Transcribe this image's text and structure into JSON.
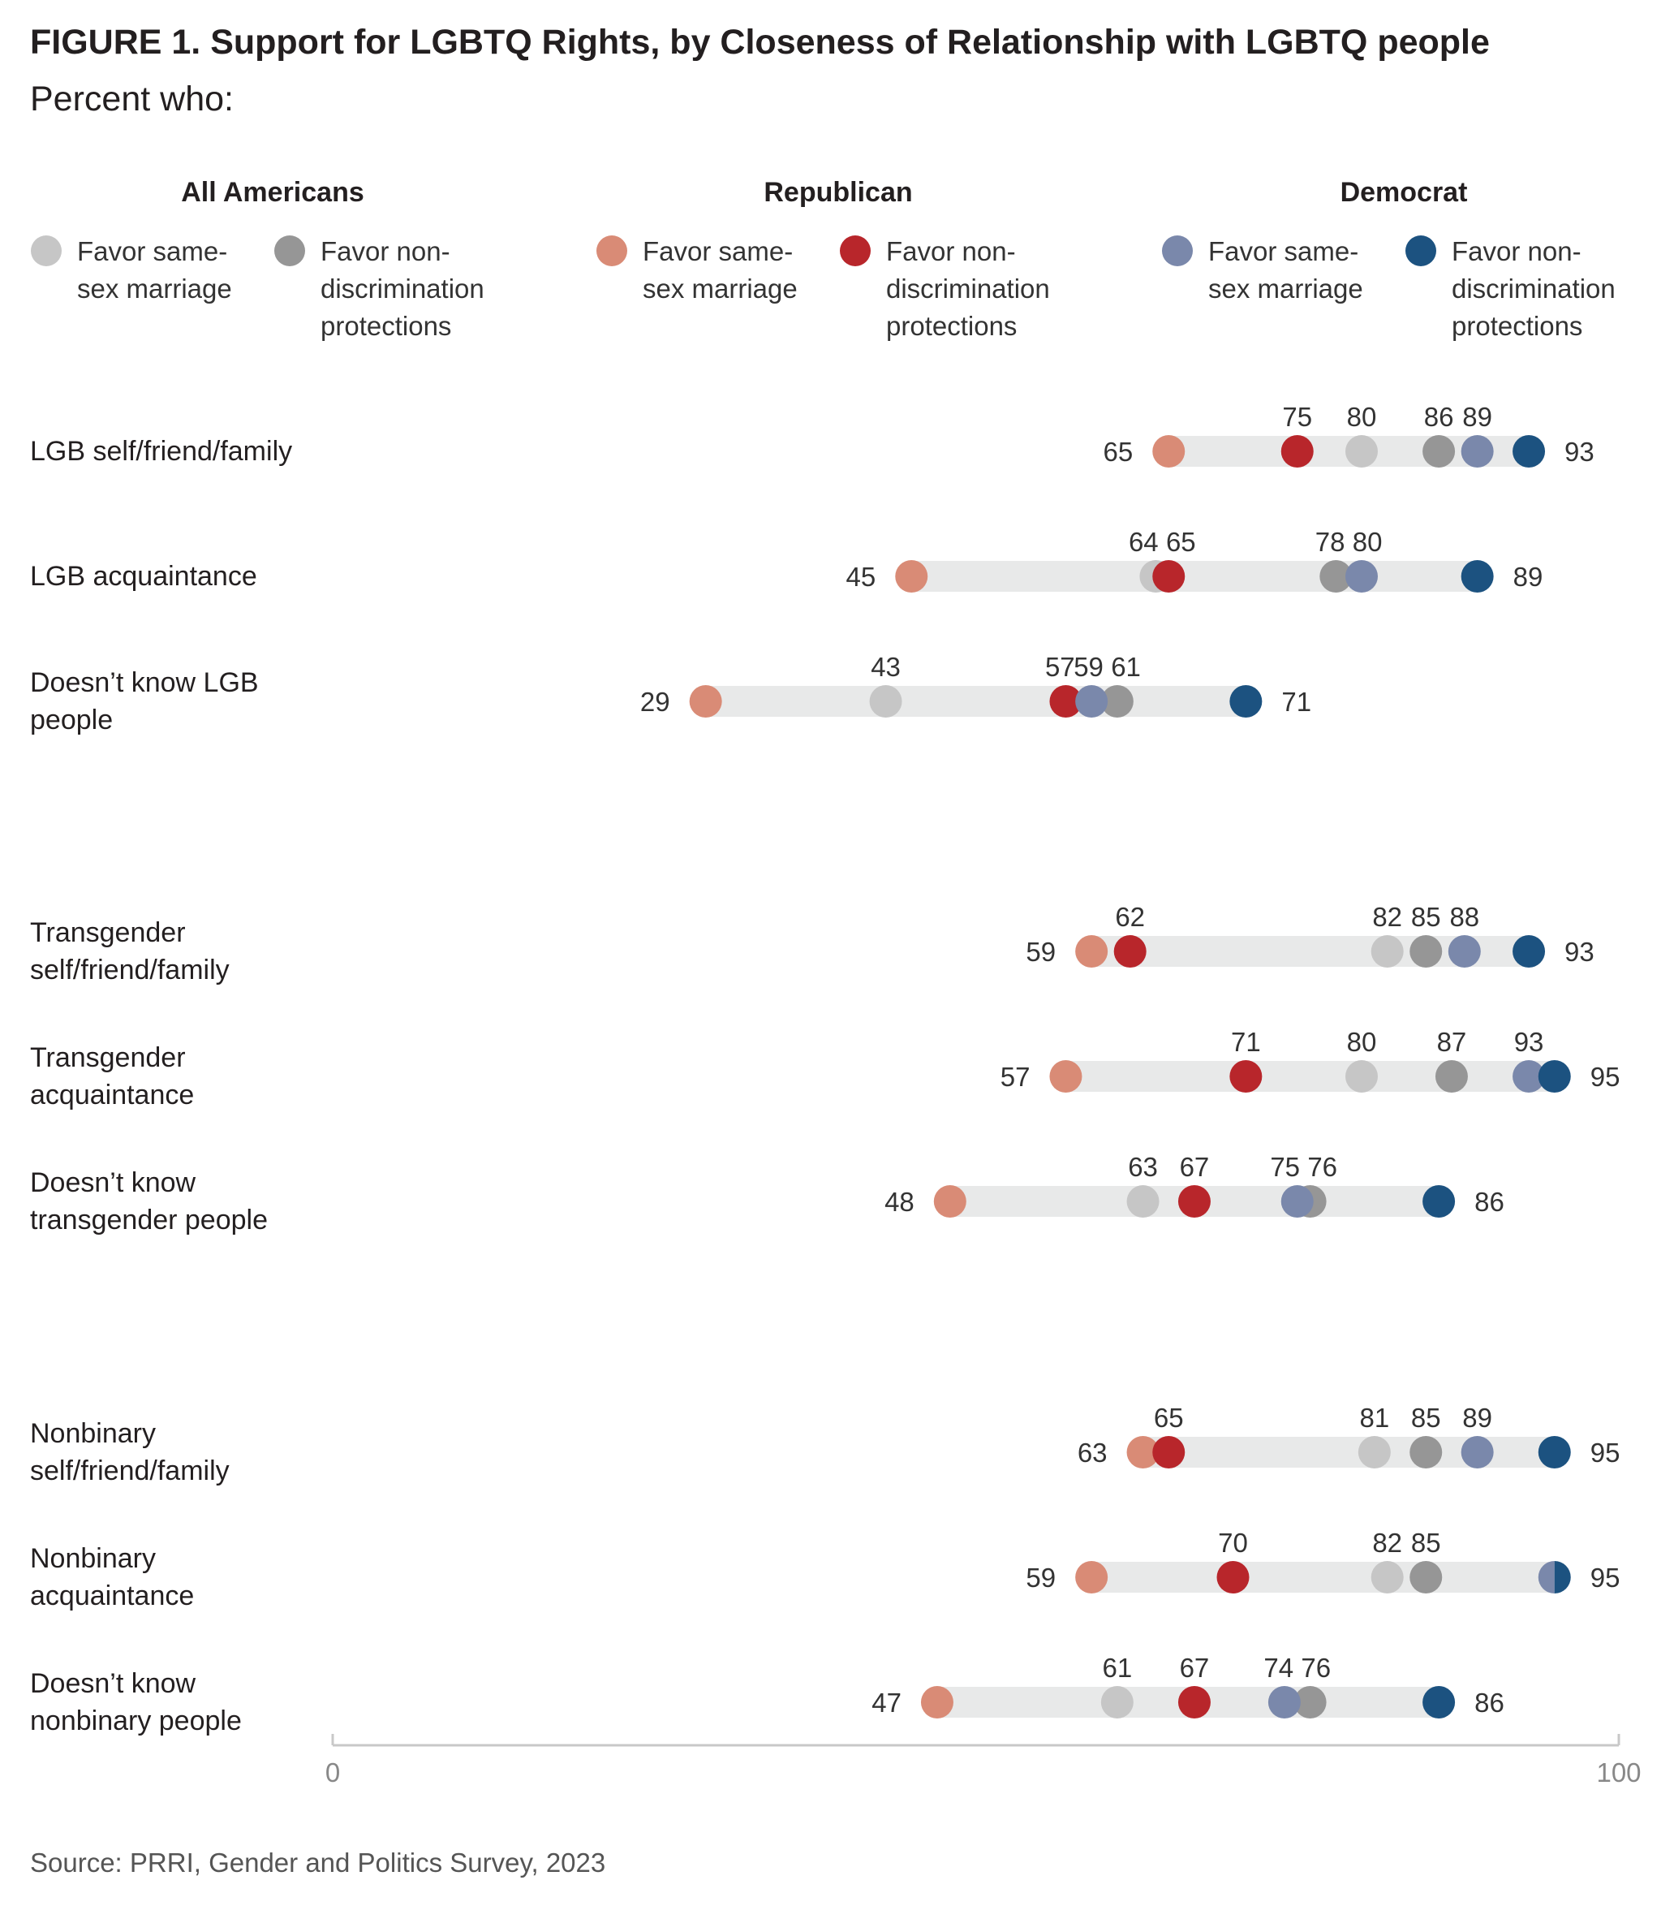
{
  "header": {
    "title": "FIGURE 1.  Support for LGBTQ Rights, by Closeness of Relationship with LGBTQ people",
    "subtitle": "Percent who:"
  },
  "legend": {
    "groups": [
      {
        "title": "All Americans",
        "items": [
          {
            "label": "Favor same-sex marriage",
            "color": "#c6c6c6"
          },
          {
            "label": "Favor non-discrimination protections",
            "color": "#969696"
          }
        ]
      },
      {
        "title": "Republican",
        "items": [
          {
            "label": "Favor same-sex marriage",
            "color": "#d98b76"
          },
          {
            "label": "Favor non-discrimination protections",
            "color": "#b8262b"
          }
        ]
      },
      {
        "title": "Democrat",
        "items": [
          {
            "label": "Favor same-sex marriage",
            "color": "#7a88ab"
          },
          {
            "label": "Favor non-discrimination protections",
            "color": "#1c5280"
          }
        ]
      }
    ]
  },
  "chart_data": {
    "type": "dot",
    "xlim": [
      0,
      100
    ],
    "x_ticks": [
      "0",
      "100"
    ],
    "grid": false,
    "series_order": [
      "all_ssm",
      "all_nd",
      "rep_ssm",
      "rep_nd",
      "dem_ssm",
      "dem_nd"
    ],
    "colors": {
      "all_ssm": "#c6c6c6",
      "all_nd": "#969696",
      "rep_ssm": "#d98b76",
      "rep_nd": "#b8262b",
      "dem_ssm": "#7a88ab",
      "dem_nd": "#1c5280"
    },
    "rows": [
      {
        "label": "LGB self/friend/family",
        "all_ssm": 80,
        "all_nd": 86,
        "rep_ssm": 65,
        "rep_nd": 75,
        "dem_ssm": 89,
        "dem_nd": 93
      },
      {
        "label": "LGB acquaintance",
        "all_ssm": 64,
        "all_nd": 78,
        "rep_ssm": 45,
        "rep_nd": 65,
        "dem_ssm": 80,
        "dem_nd": 89
      },
      {
        "label": "Doesn’t know LGB people",
        "all_ssm": 43,
        "all_nd": 61,
        "rep_ssm": 29,
        "rep_nd": 57,
        "dem_ssm": 59,
        "dem_nd": 71
      },
      {
        "label": "Transgender self/friend/family",
        "all_ssm": 82,
        "all_nd": 85,
        "rep_ssm": 59,
        "rep_nd": 62,
        "dem_ssm": 88,
        "dem_nd": 93
      },
      {
        "label": "Transgender acquaintance",
        "all_ssm": 80,
        "all_nd": 87,
        "rep_ssm": 57,
        "rep_nd": 71,
        "dem_ssm": 93,
        "dem_nd": 95
      },
      {
        "label": "Doesn’t know transgender people",
        "all_ssm": 63,
        "all_nd": 76,
        "rep_ssm": 48,
        "rep_nd": 67,
        "dem_ssm": 75,
        "dem_nd": 86
      },
      {
        "label": "Nonbinary self/friend/family",
        "all_ssm": 81,
        "all_nd": 85,
        "rep_ssm": 63,
        "rep_nd": 65,
        "dem_ssm": 89,
        "dem_nd": 95
      },
      {
        "label": "Nonbinary acquaintance",
        "all_ssm": 82,
        "all_nd": 85,
        "rep_ssm": 59,
        "rep_nd": 70,
        "dem_ssm": 95,
        "dem_nd": 95
      },
      {
        "label": "Doesn’t know nonbinary people",
        "all_ssm": 61,
        "all_nd": 76,
        "rep_ssm": 47,
        "rep_nd": 67,
        "dem_ssm": 74,
        "dem_nd": 86
      }
    ]
  },
  "footer": {
    "source": "Source: PRRI, Gender and Politics Survey, 2023"
  }
}
